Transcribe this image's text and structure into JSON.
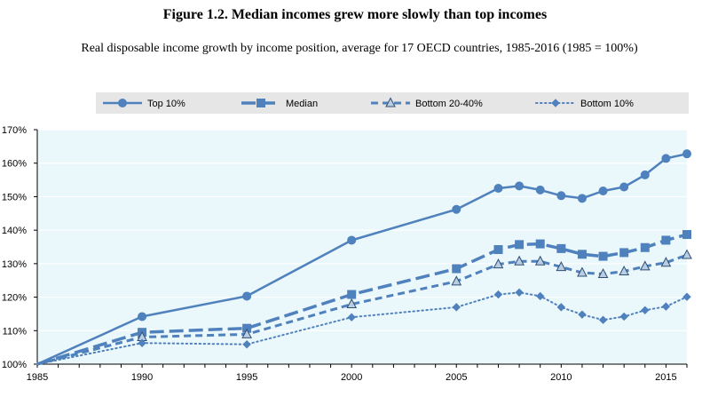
{
  "figure": {
    "title": "Figure 1.2. Median incomes grew more slowly than top incomes",
    "subtitle": "Real disposable income growth by income position, average for 17 OECD countries, 1985-2016 (1985 = 100%)"
  },
  "chart_data": {
    "type": "line",
    "title": "",
    "xlabel": "",
    "ylabel": "",
    "xlim": [
      1985,
      2016
    ],
    "ylim": [
      100,
      170
    ],
    "x_ticks": [
      1985,
      1990,
      1995,
      2000,
      2005,
      2010,
      2015
    ],
    "y_ticks": [
      100,
      110,
      120,
      130,
      140,
      150,
      160,
      170
    ],
    "y_tick_labels": [
      "100%",
      "110%",
      "120%",
      "130%",
      "140%",
      "150%",
      "160%",
      "170%"
    ],
    "grid": "horizontal",
    "legend_position": "top",
    "plot_background": "#eaf7fb",
    "line_color": "#4f81bd",
    "series": [
      {
        "name": "Top 10%",
        "style": "solid",
        "marker": "circle",
        "points": [
          [
            1985,
            100
          ],
          [
            1990,
            114.2
          ],
          [
            1995,
            120.3
          ],
          [
            2000,
            137
          ],
          [
            2005,
            146.2
          ],
          [
            2007,
            152.5
          ],
          [
            2008,
            153.2
          ],
          [
            2009,
            152
          ],
          [
            2010,
            150.3
          ],
          [
            2011,
            149.5
          ],
          [
            2012,
            151.7
          ],
          [
            2013,
            152.9
          ],
          [
            2014,
            156.5
          ],
          [
            2015,
            161.4
          ],
          [
            2016,
            162.8
          ]
        ]
      },
      {
        "name": "Median",
        "style": "longdash",
        "marker": "square",
        "points": [
          [
            1985,
            100
          ],
          [
            1990,
            109.5
          ],
          [
            1995,
            110.7
          ],
          [
            2000,
            120.8
          ],
          [
            2005,
            128.5
          ],
          [
            2007,
            134.2
          ],
          [
            2008,
            135.7
          ],
          [
            2009,
            135.9
          ],
          [
            2010,
            134.5
          ],
          [
            2011,
            132.8
          ],
          [
            2012,
            132.2
          ],
          [
            2013,
            133.3
          ],
          [
            2014,
            134.8
          ],
          [
            2015,
            137
          ],
          [
            2016,
            138.7
          ]
        ]
      },
      {
        "name": "Bottom 20-40%",
        "style": "dash",
        "marker": "triangle",
        "points": [
          [
            1985,
            100
          ],
          [
            1990,
            108.1
          ],
          [
            1995,
            108.9
          ],
          [
            2000,
            117.9
          ],
          [
            2005,
            124.7
          ],
          [
            2007,
            129.8
          ],
          [
            2008,
            130.7
          ],
          [
            2009,
            130.7
          ],
          [
            2010,
            129
          ],
          [
            2011,
            127.3
          ],
          [
            2012,
            126.9
          ],
          [
            2013,
            127.7
          ],
          [
            2014,
            129.2
          ],
          [
            2015,
            130.3
          ],
          [
            2016,
            132.6
          ]
        ]
      },
      {
        "name": "Bottom 10%",
        "style": "dotted",
        "marker": "diamond",
        "points": [
          [
            1985,
            100
          ],
          [
            1990,
            106.3
          ],
          [
            1995,
            105.9
          ],
          [
            2000,
            114
          ],
          [
            2005,
            117
          ],
          [
            2007,
            120.8
          ],
          [
            2008,
            121.4
          ],
          [
            2009,
            120.3
          ],
          [
            2010,
            117
          ],
          [
            2011,
            114.8
          ],
          [
            2012,
            113.2
          ],
          [
            2013,
            114.2
          ],
          [
            2014,
            116.1
          ],
          [
            2015,
            117.2
          ],
          [
            2016,
            120.1
          ]
        ]
      }
    ]
  }
}
